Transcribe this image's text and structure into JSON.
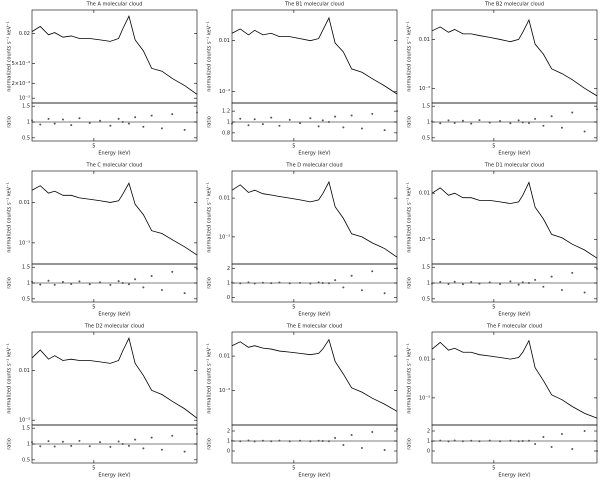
{
  "chart_data": [
    {
      "type": "line",
      "title": "The A molecular cloud",
      "y_label": "normalized counts s⁻¹ keV⁻¹",
      "log_y": true,
      "color": "#000000",
      "x": [
        2.0,
        2.4,
        2.8,
        3.1,
        3.5,
        3.9,
        4.3,
        4.8,
        5.3,
        5.8,
        6.2,
        6.4,
        6.7,
        7.0,
        7.4,
        7.8,
        8.3,
        8.8,
        9.4,
        10.0
      ],
      "values": [
        0.022,
        0.028,
        0.019,
        0.021,
        0.017,
        0.018,
        0.016,
        0.016,
        0.015,
        0.014,
        0.016,
        0.025,
        0.045,
        0.015,
        0.009,
        0.004,
        0.0035,
        0.0025,
        0.0018,
        0.0012
      ],
      "xlim": [
        2,
        10
      ],
      "ylim": [
        0.0008,
        0.06
      ],
      "yticks": [
        {
          "value": 0.02,
          "label": "0.02"
        },
        {
          "value": 0.005,
          "label": "5×10⁻³"
        },
        {
          "value": 0.002,
          "label": "2×10⁻³"
        },
        {
          "value": 0.001,
          "label": "10⁻³"
        }
      ]
    },
    {
      "type": "scatter",
      "x_label": "Energy (keV)",
      "y_label": "ratio",
      "color": "#555555",
      "reference_line": 1,
      "x": [
        2.0,
        2.4,
        2.8,
        3.1,
        3.5,
        3.9,
        4.3,
        4.8,
        5.3,
        5.8,
        6.2,
        6.4,
        6.7,
        7.0,
        7.4,
        7.8,
        8.3,
        8.8,
        9.4,
        10.0
      ],
      "values": [
        1.05,
        0.92,
        1.1,
        0.95,
        1.08,
        0.9,
        1.12,
        0.97,
        1.04,
        0.88,
        1.1,
        1.0,
        0.95,
        1.15,
        0.85,
        1.2,
        0.8,
        1.25,
        0.75,
        1.3
      ],
      "xlim": [
        2,
        10
      ],
      "ylim": [
        0.4,
        1.6
      ],
      "xticks": [
        5
      ],
      "yticks": [
        0.5,
        1,
        1.5
      ]
    },
    {
      "type": "line",
      "title": "The B1 molecular cloud",
      "y_label": "normalized counts s⁻¹ keV⁻¹",
      "log_y": true,
      "color": "#000000",
      "x": [
        2.0,
        2.4,
        2.8,
        3.1,
        3.5,
        3.9,
        4.3,
        4.8,
        5.3,
        5.8,
        6.2,
        6.4,
        6.7,
        7.0,
        7.4,
        7.8,
        8.3,
        8.8,
        9.4,
        10.0
      ],
      "values": [
        0.014,
        0.017,
        0.013,
        0.016,
        0.013,
        0.014,
        0.012,
        0.012,
        0.011,
        0.01,
        0.011,
        0.016,
        0.028,
        0.009,
        0.006,
        0.0028,
        0.0024,
        0.0018,
        0.0013,
        0.0009
      ],
      "xlim": [
        2,
        10
      ],
      "ylim": [
        0.0006,
        0.04
      ],
      "yticks": [
        {
          "value": 0.01,
          "label": "0.01"
        },
        {
          "value": 0.001,
          "label": "10⁻³"
        }
      ]
    },
    {
      "type": "scatter",
      "x_label": "Energy (keV)",
      "y_label": "ratio",
      "color": "#555555",
      "reference_line": 1,
      "x": [
        2.0,
        2.4,
        2.8,
        3.1,
        3.5,
        3.9,
        4.3,
        4.8,
        5.3,
        5.8,
        6.2,
        6.4,
        6.7,
        7.0,
        7.4,
        7.8,
        8.3,
        8.8,
        9.4,
        10.0
      ],
      "values": [
        0.97,
        1.06,
        0.94,
        1.05,
        0.96,
        1.08,
        0.93,
        1.04,
        0.98,
        1.07,
        0.92,
        1.03,
        1.0,
        1.1,
        0.9,
        1.12,
        0.88,
        1.15,
        0.85,
        1.2
      ],
      "xlim": [
        2,
        10
      ],
      "ylim": [
        0.65,
        1.35
      ],
      "xticks": [
        5
      ],
      "yticks": [
        0.8,
        1,
        1.2
      ]
    },
    {
      "type": "line",
      "title": "The B2 molecular cloud",
      "y_label": "normalized counts s⁻¹ keV⁻¹",
      "log_y": true,
      "color": "#000000",
      "x": [
        2.0,
        2.4,
        2.8,
        3.1,
        3.5,
        3.9,
        4.3,
        4.8,
        5.3,
        5.8,
        6.2,
        6.4,
        6.7,
        7.0,
        7.4,
        7.8,
        8.3,
        8.8,
        9.4,
        10.0
      ],
      "values": [
        0.015,
        0.018,
        0.014,
        0.016,
        0.013,
        0.013,
        0.012,
        0.011,
        0.01,
        0.009,
        0.01,
        0.014,
        0.025,
        0.008,
        0.005,
        0.0025,
        0.002,
        0.0015,
        0.001,
        0.0007
      ],
      "xlim": [
        2,
        10
      ],
      "ylim": [
        0.0005,
        0.04
      ],
      "yticks": [
        {
          "value": 0.01,
          "label": "0.01"
        },
        {
          "value": 0.001,
          "label": "10⁻³"
        }
      ]
    },
    {
      "type": "scatter",
      "x_label": "Energy (keV)",
      "y_label": "ratio",
      "color": "#555555",
      "reference_line": 1,
      "x": [
        2.0,
        2.4,
        2.8,
        3.1,
        3.5,
        3.9,
        4.3,
        4.8,
        5.3,
        5.8,
        6.2,
        6.4,
        6.7,
        7.0,
        7.4,
        7.8,
        8.3,
        8.8,
        9.4,
        10.0
      ],
      "values": [
        1.02,
        0.96,
        1.05,
        0.97,
        1.04,
        0.95,
        1.06,
        0.98,
        1.03,
        0.96,
        1.05,
        0.99,
        0.97,
        1.1,
        0.88,
        1.18,
        0.82,
        1.3,
        0.7,
        1.4
      ],
      "xlim": [
        2,
        10
      ],
      "ylim": [
        0.4,
        1.6
      ],
      "xticks": [
        5
      ],
      "yticks": [
        0.5,
        1,
        1.5
      ]
    },
    {
      "type": "line",
      "title": "The C molecular cloud",
      "y_label": "normalized counts s⁻¹ keV⁻¹",
      "log_y": true,
      "color": "#000000",
      "x": [
        2.0,
        2.4,
        2.8,
        3.1,
        3.5,
        3.9,
        4.3,
        4.8,
        5.3,
        5.8,
        6.2,
        6.4,
        6.7,
        7.0,
        7.4,
        7.8,
        8.3,
        8.8,
        9.4,
        10.0
      ],
      "values": [
        0.02,
        0.026,
        0.017,
        0.019,
        0.015,
        0.015,
        0.013,
        0.012,
        0.011,
        0.01,
        0.011,
        0.016,
        0.03,
        0.009,
        0.005,
        0.002,
        0.0017,
        0.0012,
        0.0008,
        0.0005
      ],
      "xlim": [
        2,
        10
      ],
      "ylim": [
        0.0003,
        0.06
      ],
      "yticks": [
        {
          "value": 0.01,
          "label": "0.01"
        },
        {
          "value": 0.001,
          "label": "10⁻³"
        }
      ]
    },
    {
      "type": "scatter",
      "x_label": "Energy (keV)",
      "y_label": "ratio",
      "color": "#555555",
      "reference_line": 1,
      "x": [
        2.0,
        2.4,
        2.8,
        3.1,
        3.5,
        3.9,
        4.3,
        4.8,
        5.3,
        5.8,
        6.2,
        6.4,
        6.7,
        7.0,
        7.4,
        7.8,
        8.3,
        8.8,
        9.4,
        10.0
      ],
      "values": [
        1.04,
        0.95,
        1.07,
        0.94,
        1.03,
        0.97,
        1.05,
        0.96,
        1.02,
        0.94,
        1.06,
        1.0,
        0.96,
        1.12,
        0.86,
        1.22,
        0.78,
        1.35,
        0.68,
        1.45
      ],
      "xlim": [
        2,
        10
      ],
      "ylim": [
        0.4,
        1.6
      ],
      "xticks": [
        5
      ],
      "yticks": [
        0.5,
        1,
        1.5
      ]
    },
    {
      "type": "line",
      "title": "The D molecular cloud",
      "y_label": "normalized counts s⁻¹ keV⁻¹",
      "log_y": true,
      "color": "#000000",
      "x": [
        2.0,
        2.4,
        2.8,
        3.1,
        3.5,
        3.9,
        4.3,
        4.8,
        5.3,
        5.8,
        6.2,
        6.4,
        6.7,
        7.0,
        7.4,
        7.8,
        8.3,
        8.8,
        9.4,
        10.0
      ],
      "values": [
        0.016,
        0.022,
        0.014,
        0.016,
        0.013,
        0.012,
        0.011,
        0.01,
        0.009,
        0.008,
        0.009,
        0.013,
        0.026,
        0.006,
        0.003,
        0.0012,
        0.001,
        0.0007,
        0.0005,
        0.0003
      ],
      "xlim": [
        2,
        10
      ],
      "ylim": [
        0.0002,
        0.05
      ],
      "yticks": [
        {
          "value": 0.01,
          "label": "0.01"
        },
        {
          "value": 0.001,
          "label": "10⁻³"
        }
      ]
    },
    {
      "type": "scatter",
      "x_label": "Energy (keV)",
      "y_label": "ratio",
      "color": "#555555",
      "reference_line": 1,
      "x": [
        2.0,
        2.4,
        2.8,
        3.1,
        3.5,
        3.9,
        4.3,
        4.8,
        5.3,
        5.8,
        6.2,
        6.4,
        6.7,
        7.0,
        7.4,
        7.8,
        8.3,
        8.8,
        9.4,
        10.0
      ],
      "values": [
        1.03,
        0.98,
        1.04,
        0.97,
        1.02,
        0.99,
        1.03,
        0.98,
        1.01,
        0.97,
        1.04,
        1.0,
        0.98,
        1.2,
        0.7,
        1.5,
        0.5,
        1.8,
        0.3,
        2.0
      ],
      "xlim": [
        2,
        10
      ],
      "ylim": [
        -0.3,
        2.3
      ],
      "xticks": [
        5
      ],
      "yticks": [
        0,
        1,
        2
      ]
    },
    {
      "type": "line",
      "title": "The D1 molecular cloud",
      "y_label": "normalized counts s⁻¹ keV⁻¹",
      "log_y": true,
      "color": "#000000",
      "x": [
        2.0,
        2.4,
        2.8,
        3.1,
        3.5,
        3.9,
        4.3,
        4.8,
        5.3,
        5.8,
        6.2,
        6.4,
        6.7,
        7.0,
        7.4,
        7.8,
        8.3,
        8.8,
        9.4,
        10.0
      ],
      "values": [
        0.01,
        0.013,
        0.009,
        0.01,
        0.008,
        0.008,
        0.007,
        0.007,
        0.0065,
        0.006,
        0.0065,
        0.009,
        0.017,
        0.005,
        0.0028,
        0.0013,
        0.0011,
        0.0008,
        0.0006,
        0.0004
      ],
      "xlim": [
        2,
        10
      ],
      "ylim": [
        0.0003,
        0.03
      ],
      "yticks": [
        {
          "value": 0.01,
          "label": "0.01"
        },
        {
          "value": 0.001,
          "label": "10⁻³"
        }
      ]
    },
    {
      "type": "scatter",
      "x_label": "Energy (keV)",
      "y_label": "ratio",
      "color": "#555555",
      "reference_line": 1,
      "x": [
        2.0,
        2.4,
        2.8,
        3.1,
        3.5,
        3.9,
        4.3,
        4.8,
        5.3,
        5.8,
        6.2,
        6.4,
        6.7,
        7.0,
        7.4,
        7.8,
        8.3,
        8.8,
        9.4,
        10.0
      ],
      "values": [
        0.98,
        1.03,
        0.97,
        1.04,
        0.96,
        1.03,
        0.98,
        1.02,
        0.97,
        1.05,
        0.95,
        1.02,
        1.0,
        1.1,
        0.88,
        1.2,
        0.78,
        1.32,
        0.7,
        1.45
      ],
      "xlim": [
        2,
        10
      ],
      "ylim": [
        0.4,
        1.6
      ],
      "xticks": [
        5
      ],
      "yticks": [
        0.5,
        1,
        1.5
      ]
    },
    {
      "type": "line",
      "title": "The D2 molecular cloud",
      "y_label": "normalized counts s⁻¹ keV⁻¹",
      "log_y": true,
      "color": "#000000",
      "x": [
        2.0,
        2.4,
        2.8,
        3.1,
        3.5,
        3.9,
        4.3,
        4.8,
        5.3,
        5.8,
        6.2,
        6.4,
        6.7,
        7.0,
        7.4,
        7.8,
        8.3,
        8.8,
        9.4,
        10.0
      ],
      "values": [
        0.018,
        0.026,
        0.017,
        0.02,
        0.016,
        0.017,
        0.016,
        0.016,
        0.015,
        0.014,
        0.016,
        0.025,
        0.045,
        0.014,
        0.008,
        0.004,
        0.0033,
        0.0024,
        0.0017,
        0.0011
      ],
      "xlim": [
        2,
        10
      ],
      "ylim": [
        0.0008,
        0.06
      ],
      "yticks": [
        {
          "value": 0.01,
          "label": "0.01"
        },
        {
          "value": 0.001,
          "label": "10⁻³"
        }
      ]
    },
    {
      "type": "scatter",
      "x_label": "Energy (keV)",
      "y_label": "ratio",
      "color": "#555555",
      "reference_line": 1,
      "x": [
        2.0,
        2.4,
        2.8,
        3.1,
        3.5,
        3.9,
        4.3,
        4.8,
        5.3,
        5.8,
        6.2,
        6.4,
        6.7,
        7.0,
        7.4,
        7.8,
        8.3,
        8.8,
        9.4,
        10.0
      ],
      "values": [
        1.06,
        0.93,
        1.09,
        0.92,
        1.07,
        0.94,
        1.1,
        0.93,
        1.06,
        0.91,
        1.08,
        1.0,
        0.94,
        1.14,
        0.86,
        1.2,
        0.82,
        1.26,
        0.76,
        1.32
      ],
      "xlim": [
        2,
        10
      ],
      "ylim": [
        0.4,
        1.6
      ],
      "xticks": [
        5
      ],
      "yticks": [
        0.5,
        1,
        1.5
      ]
    },
    {
      "type": "line",
      "title": "The E molecular cloud",
      "y_label": "normalized counts s⁻¹ keV⁻¹",
      "log_y": true,
      "color": "#000000",
      "x": [
        2.0,
        2.4,
        2.8,
        3.1,
        3.5,
        3.9,
        4.3,
        4.8,
        5.3,
        5.8,
        6.2,
        6.4,
        6.7,
        7.0,
        7.4,
        7.8,
        8.3,
        8.8,
        9.4,
        10.0
      ],
      "values": [
        0.02,
        0.026,
        0.018,
        0.02,
        0.017,
        0.016,
        0.014,
        0.013,
        0.012,
        0.011,
        0.012,
        0.016,
        0.03,
        0.007,
        0.003,
        0.0012,
        0.0009,
        0.0006,
        0.0004,
        0.00025
      ],
      "xlim": [
        2,
        10
      ],
      "ylim": [
        0.0001,
        0.05
      ],
      "yticks": [
        {
          "value": 0.01,
          "label": "0.01"
        },
        {
          "value": 0.001,
          "label": "10⁻³"
        }
      ]
    },
    {
      "type": "scatter",
      "x_label": "Energy (keV)",
      "y_label": "ratio",
      "color": "#555555",
      "reference_line": 1,
      "x": [
        2.0,
        2.4,
        2.8,
        3.1,
        3.5,
        3.9,
        4.3,
        4.8,
        5.3,
        5.8,
        6.2,
        6.4,
        6.7,
        7.0,
        7.4,
        7.8,
        8.3,
        8.8,
        9.4,
        10.0
      ],
      "values": [
        1.04,
        0.97,
        1.05,
        0.96,
        1.03,
        0.98,
        1.04,
        0.97,
        1.02,
        0.98,
        1.03,
        1.0,
        0.97,
        1.3,
        0.6,
        1.6,
        0.3,
        1.9,
        0.1,
        2.2
      ],
      "xlim": [
        2,
        10
      ],
      "ylim": [
        -1.2,
        2.6
      ],
      "xticks": [
        5
      ],
      "yticks": [
        0,
        1,
        2
      ]
    },
    {
      "type": "line",
      "title": "The F molecular cloud",
      "y_label": "normalized counts s⁻¹ keV⁻¹",
      "log_y": true,
      "color": "#000000",
      "x": [
        2.0,
        2.4,
        2.8,
        3.1,
        3.5,
        3.9,
        4.3,
        4.8,
        5.3,
        5.8,
        6.2,
        6.4,
        6.7,
        7.0,
        7.4,
        7.8,
        8.3,
        8.8,
        9.4,
        10.0
      ],
      "values": [
        0.018,
        0.027,
        0.017,
        0.019,
        0.015,
        0.015,
        0.013,
        0.012,
        0.011,
        0.01,
        0.011,
        0.015,
        0.03,
        0.006,
        0.0028,
        0.0012,
        0.0009,
        0.0006,
        0.0004,
        0.0003
      ],
      "xlim": [
        2,
        10
      ],
      "ylim": [
        0.0002,
        0.05
      ],
      "yticks": [
        {
          "value": 0.01,
          "label": "0.01"
        },
        {
          "value": 0.001,
          "label": "10⁻³"
        }
      ]
    },
    {
      "type": "scatter",
      "x_label": "Energy (keV)",
      "y_label": "ratio",
      "color": "#555555",
      "reference_line": 1,
      "x": [
        2.0,
        2.4,
        2.8,
        3.1,
        3.5,
        3.9,
        4.3,
        4.8,
        5.3,
        5.8,
        6.2,
        6.4,
        6.7,
        7.0,
        7.4,
        7.8,
        8.3,
        8.8,
        9.4,
        10.0
      ],
      "values": [
        0.97,
        1.04,
        0.96,
        1.05,
        0.97,
        1.03,
        0.98,
        1.04,
        0.97,
        1.02,
        0.98,
        1.0,
        1.03,
        0.7,
        1.4,
        0.4,
        1.7,
        0.2,
        2.0,
        0.0
      ],
      "xlim": [
        2,
        10
      ],
      "ylim": [
        -1.2,
        2.6
      ],
      "xticks": [
        5
      ],
      "yticks": [
        0,
        1,
        2
      ]
    }
  ]
}
